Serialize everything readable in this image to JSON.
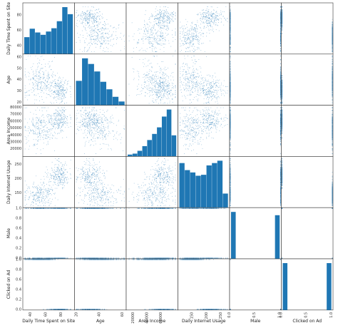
{
  "chart_data": {
    "type": "scatter_matrix",
    "variables": [
      "Daily Time Spent on Site",
      "Age",
      "Area Income",
      "Daily Internet Usage",
      "Male",
      "Clicked on Ad"
    ],
    "color": "#1f77b4",
    "ranges": [
      [
        30,
        95
      ],
      [
        18,
        62
      ],
      [
        10000,
        82000
      ],
      [
        100,
        275
      ],
      [
        0,
        1
      ],
      [
        0,
        1
      ]
    ],
    "row_ticks": [
      [
        40,
        60,
        80
      ],
      [
        20,
        30,
        40,
        50,
        60
      ],
      [
        20000,
        30000,
        40000,
        50000,
        60000,
        70000,
        80000
      ],
      [
        150,
        200,
        250
      ],
      [
        0.0,
        0.2,
        0.4,
        0.6,
        0.8,
        1.0
      ],
      [
        0.0,
        0.2,
        0.4,
        0.6,
        0.8,
        1.0
      ]
    ],
    "col_ticks": [
      [
        40,
        60,
        80
      ],
      [
        20,
        40,
        60
      ],
      [
        20000,
        40000,
        60000
      ],
      [
        150,
        200,
        250
      ],
      [
        0.0,
        0.5,
        1.0
      ],
      [
        0.0,
        0.5,
        1.0
      ]
    ],
    "histograms": [
      [
        0.36,
        0.54,
        0.46,
        0.41,
        0.48,
        0.55,
        0.7,
        1.0,
        0.85
      ],
      [
        0.52,
        1.0,
        0.88,
        0.72,
        0.5,
        0.34,
        0.18,
        0.08
      ],
      [
        0.04,
        0.06,
        0.12,
        0.22,
        0.35,
        0.48,
        0.62,
        0.85,
        1.0,
        0.45
      ],
      [
        0.95,
        0.8,
        0.75,
        0.68,
        0.7,
        0.9,
        0.95,
        1.0,
        0.3
      ],
      [
        1.0,
        0,
        0,
        0,
        0,
        0,
        0,
        0,
        0,
        0.93
      ],
      [
        1.0,
        0,
        0,
        0,
        0,
        0,
        0,
        0,
        0,
        1.0
      ]
    ]
  }
}
